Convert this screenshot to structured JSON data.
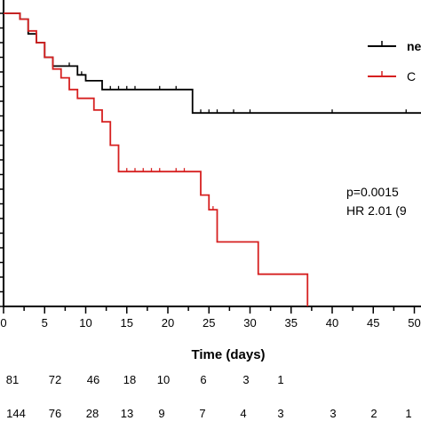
{
  "chart_data": {
    "type": "line",
    "subtype": "kaplan-meier",
    "xlabel": "Time (days)",
    "x_ticks": [
      0,
      5,
      10,
      15,
      20,
      25,
      30,
      35,
      40,
      45,
      50
    ],
    "xlim": [
      0,
      51
    ],
    "ylim": [
      0,
      1
    ],
    "legend": {
      "position": "top-right"
    },
    "series": [
      {
        "name": "ne",
        "color": "#000000",
        "steps": [
          [
            0,
            1.0
          ],
          [
            2,
            0.98
          ],
          [
            3,
            0.93
          ],
          [
            4,
            0.9
          ],
          [
            5,
            0.85
          ],
          [
            6,
            0.82
          ],
          [
            9,
            0.79
          ],
          [
            10,
            0.77
          ],
          [
            12,
            0.74
          ],
          [
            23,
            0.66
          ],
          [
            51,
            0.66
          ]
        ],
        "censored": [
          [
            8,
            0.82
          ],
          [
            9.5,
            0.79
          ],
          [
            13,
            0.74
          ],
          [
            14,
            0.74
          ],
          [
            15,
            0.74
          ],
          [
            16,
            0.74
          ],
          [
            19,
            0.74
          ],
          [
            21,
            0.74
          ],
          [
            24,
            0.66
          ],
          [
            25,
            0.66
          ],
          [
            26,
            0.66
          ],
          [
            28,
            0.66
          ],
          [
            30,
            0.66
          ],
          [
            40,
            0.66
          ],
          [
            49,
            0.66
          ]
        ]
      },
      {
        "name": "C",
        "color": "#d62020",
        "steps": [
          [
            0,
            1.0
          ],
          [
            2,
            0.98
          ],
          [
            3,
            0.94
          ],
          [
            4,
            0.9
          ],
          [
            5,
            0.85
          ],
          [
            6,
            0.81
          ],
          [
            7,
            0.78
          ],
          [
            8,
            0.74
          ],
          [
            9,
            0.71
          ],
          [
            11,
            0.67
          ],
          [
            12,
            0.63
          ],
          [
            13,
            0.55
          ],
          [
            14,
            0.46
          ],
          [
            24,
            0.38
          ],
          [
            25,
            0.33
          ],
          [
            26,
            0.22
          ],
          [
            31,
            0.11
          ],
          [
            37,
            0.0
          ]
        ],
        "censored": [
          [
            15,
            0.46
          ],
          [
            16,
            0.46
          ],
          [
            17,
            0.46
          ],
          [
            18,
            0.46
          ],
          [
            19,
            0.46
          ],
          [
            21,
            0.46
          ],
          [
            22,
            0.46
          ],
          [
            25.5,
            0.33
          ]
        ]
      }
    ],
    "annotations": {
      "p_value": "p=0.0015",
      "hr": "HR 2.01 (9"
    },
    "risk_table": [
      {
        "values": [
          "81",
          "72",
          "46",
          "18",
          "10",
          "6",
          "3",
          "1"
        ]
      },
      {
        "values": [
          "144",
          "76",
          "28",
          "13",
          "9",
          "7",
          "4",
          "3",
          "3",
          "2",
          "1"
        ]
      }
    ]
  }
}
